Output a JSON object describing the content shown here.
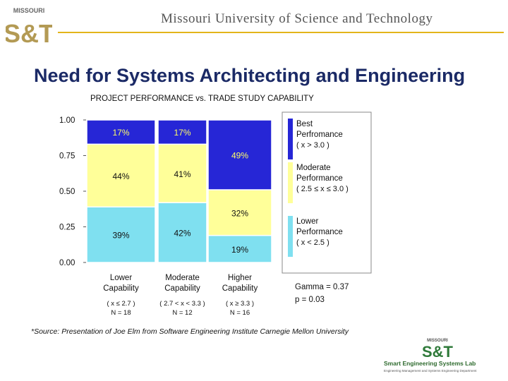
{
  "header": {
    "logo_top": "MISSOURI",
    "logo_main": "S&T",
    "university_name": "Missouri University of Science and Technology"
  },
  "slide": {
    "title": "Need for Systems Architecting and Engineering",
    "source_note": "*Source:   Presentation of Joe Elm from Software Engineering Institute  Carnegie Mellon University"
  },
  "footer_logo": {
    "top": "MISSOURI",
    "main": "S&T",
    "lab_name": "Smart Engineering Systems Lab",
    "dept": "Engineering Management and Systems Engineering Department"
  },
  "colors": {
    "best": "#2626d6",
    "moderate": "#ffff99",
    "lower": "#7fe0f0",
    "title_blue": "#1b2a66",
    "header_gold": "#e3b51a"
  },
  "chart_data": {
    "type": "bar",
    "stacked": true,
    "title": "PROJECT PERFORMANCE vs. TRADE STUDY CAPABILITY",
    "ylim": [
      0,
      1
    ],
    "y_ticks": [
      "0.00",
      "0.25",
      "0.50",
      "0.75",
      "1.00"
    ],
    "categories": [
      {
        "label_line1": "Lower",
        "label_line2": "Capability",
        "range": "( x ≤ 2.7 )",
        "n": "N = 18"
      },
      {
        "label_line1": "Moderate",
        "label_line2": "Capability",
        "range": "( 2.7 < x < 3.3 )",
        "n": "N = 12"
      },
      {
        "label_line1": "Higher",
        "label_line2": "Capability",
        "range": "( x ≥ 3.3 )",
        "n": "N = 16"
      }
    ],
    "series": [
      {
        "key": "lower",
        "values": [
          0.39,
          0.42,
          0.19
        ],
        "labels": [
          "39%",
          "42%",
          "19%"
        ]
      },
      {
        "key": "moderate",
        "values": [
          0.44,
          0.41,
          0.32
        ],
        "labels": [
          "44%",
          "41%",
          "32%"
        ]
      },
      {
        "key": "best",
        "values": [
          0.17,
          0.17,
          0.49
        ],
        "labels": [
          "17%",
          "17%",
          "49%"
        ]
      }
    ],
    "legend": [
      {
        "key": "best",
        "line1": "Best",
        "line2": "Perfromance",
        "line3": "( x > 3.0 )"
      },
      {
        "key": "moderate",
        "line1": "Moderate",
        "line2": "Performance",
        "line3": "( 2.5 ≤ x ≤ 3.0 )"
      },
      {
        "key": "lower",
        "line1": "Lower",
        "line2": "Performance",
        "line3": "( x < 2.5 )"
      }
    ],
    "legend_position": "right",
    "stats": {
      "gamma": "Gamma = 0.37",
      "p": "p = 0.03"
    }
  }
}
